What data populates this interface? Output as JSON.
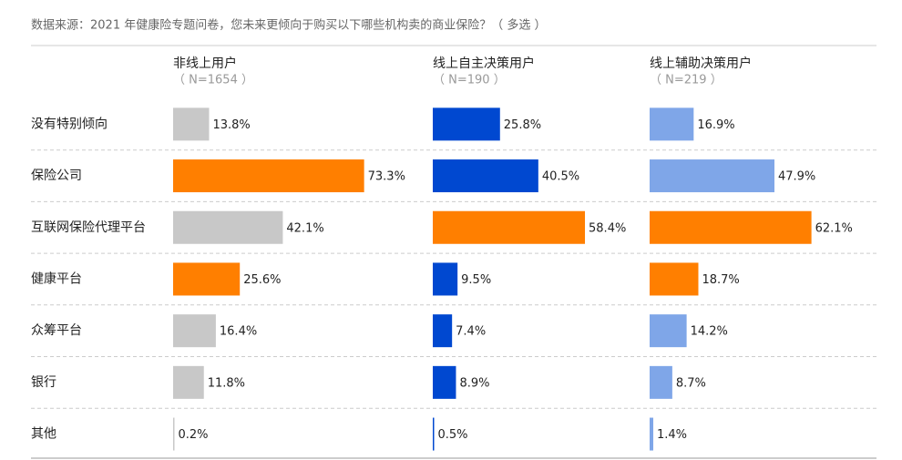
{
  "chart_data": {
    "type": "bar",
    "orientation": "horizontal",
    "title": "数据来源：2021 年健康险专题问卷，您未来更倾向于购买以下哪些机构卖的商业保险？（ 多选 ）",
    "categories": [
      "没有特别倾向",
      "保险公司",
      "互联网保险代理平台",
      "健康平台",
      "众筹平台",
      "银行",
      "其他"
    ],
    "xlim": [
      0,
      100
    ],
    "series": [
      {
        "name": "非线上用户",
        "sample": "（ N=1654 ）",
        "values": [
          13.8,
          73.3,
          42.1,
          25.6,
          16.4,
          11.8,
          0.2
        ],
        "value_labels": [
          "13.8%",
          "73.3%",
          "42.1%",
          "25.6%",
          "16.4%",
          "11.8%",
          "0.2%"
        ],
        "colors": [
          "#c8c8c8",
          "#ff7f00",
          "#c8c8c8",
          "#ff7f00",
          "#c8c8c8",
          "#c8c8c8",
          "#c8c8c8"
        ]
      },
      {
        "name": "线上自主决策用户",
        "sample": "（ N=190 ）",
        "values": [
          25.8,
          40.5,
          58.4,
          9.5,
          7.4,
          8.9,
          0.5
        ],
        "value_labels": [
          "25.8%",
          "40.5%",
          "58.4%",
          "9.5%",
          "7.4%",
          "8.9%",
          "0.5%"
        ],
        "colors": [
          "#0048d0",
          "#0048d0",
          "#ff7f00",
          "#0048d0",
          "#0048d0",
          "#0048d0",
          "#0048d0"
        ]
      },
      {
        "name": "线上辅助决策用户",
        "sample": "（ N=219 ）",
        "values": [
          16.9,
          47.9,
          62.1,
          18.7,
          14.2,
          8.7,
          1.4
        ],
        "value_labels": [
          "16.9%",
          "47.9%",
          "62.1%",
          "18.7%",
          "14.2%",
          "8.7%",
          "1.4%"
        ],
        "colors": [
          "#7fa6e8",
          "#7fa6e8",
          "#ff7f00",
          "#ff7f00",
          "#7fa6e8",
          "#7fa6e8",
          "#7fa6e8"
        ]
      }
    ]
  }
}
